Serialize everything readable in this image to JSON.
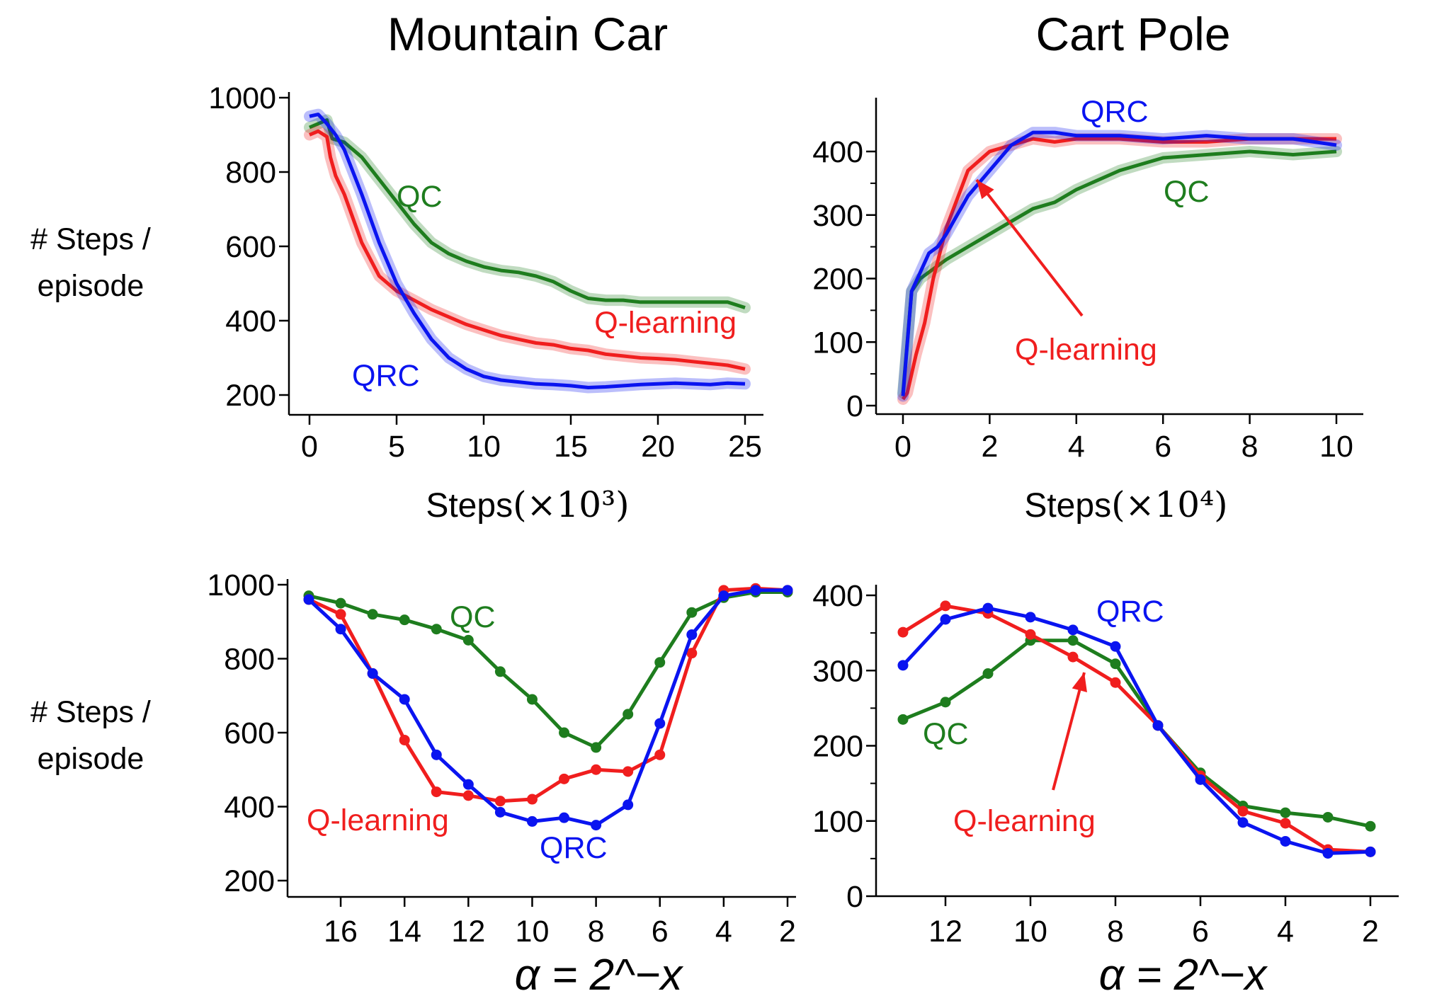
{
  "titles": [
    "Mountain Car",
    "Cart Pole"
  ],
  "row_ylabel": [
    "# Steps /",
    "episode"
  ],
  "colors": {
    "QRC": "#0a14f0",
    "Q-learning": "#f01e1e",
    "QC": "#1e7d1e"
  },
  "chart_data": [
    {
      "type": "line",
      "panel": "Mountain Car learning curve",
      "xlabel": "Steps",
      "xlabel_math": "(×10³)",
      "ylabel": "# Steps / episode",
      "xlim": [
        0,
        25
      ],
      "ylim": [
        200,
        1000
      ],
      "xticks": [
        "0",
        "5",
        "10",
        "15",
        "20",
        "25"
      ],
      "yticks": [
        "200",
        "400",
        "600",
        "800",
        "1000"
      ],
      "shaded_band": true,
      "series": [
        {
          "name": "QRC",
          "x": [
            0,
            0.5,
            1,
            1.5,
            2,
            3,
            4,
            5,
            6,
            7,
            8,
            9,
            10,
            11,
            12,
            13,
            14,
            15,
            16,
            17,
            18,
            19,
            20,
            21,
            22,
            23,
            24,
            25
          ],
          "y": [
            950,
            955,
            930,
            900,
            860,
            740,
            610,
            500,
            420,
            350,
            300,
            270,
            250,
            240,
            235,
            230,
            228,
            225,
            220,
            222,
            225,
            228,
            230,
            232,
            230,
            228,
            232,
            230
          ]
        },
        {
          "name": "Q-learning",
          "x": [
            0,
            0.5,
            1,
            1.2,
            1.5,
            2,
            3,
            4,
            5,
            6,
            7,
            8,
            9,
            10,
            11,
            12,
            13,
            14,
            15,
            16,
            17,
            18,
            19,
            20,
            21,
            22,
            23,
            24,
            25
          ],
          "y": [
            900,
            910,
            895,
            840,
            790,
            740,
            610,
            520,
            480,
            455,
            430,
            410,
            390,
            375,
            360,
            350,
            340,
            335,
            325,
            320,
            310,
            305,
            300,
            298,
            295,
            290,
            285,
            280,
            270
          ]
        },
        {
          "name": "QC",
          "x": [
            0,
            0.5,
            1,
            1.3,
            2,
            3,
            4,
            5,
            6,
            7,
            8,
            9,
            10,
            11,
            12,
            13,
            14,
            15,
            16,
            17,
            18,
            19,
            20,
            21,
            22,
            23,
            24,
            25
          ],
          "y": [
            920,
            930,
            940,
            890,
            880,
            840,
            780,
            720,
            660,
            610,
            580,
            560,
            545,
            535,
            530,
            520,
            505,
            480,
            460,
            455,
            455,
            450,
            450,
            450,
            450,
            450,
            450,
            435
          ]
        }
      ],
      "annotations": [
        "QC",
        "Q-learning",
        "QRC"
      ]
    },
    {
      "type": "line",
      "panel": "Cart Pole learning curve",
      "xlabel": "Steps",
      "xlabel_math": "(×10⁴)",
      "ylabel": "",
      "xlim": [
        0,
        10
      ],
      "ylim": [
        0,
        450
      ],
      "xticks": [
        "0",
        "2",
        "4",
        "6",
        "8",
        "10"
      ],
      "yticks": [
        "0",
        "100",
        "200",
        "300",
        "400"
      ],
      "shaded_band": true,
      "series": [
        {
          "name": "QRC",
          "x": [
            0,
            0.2,
            0.4,
            0.6,
            0.8,
            1,
            1.5,
            2,
            2.5,
            3,
            3.5,
            4,
            5,
            6,
            7,
            8,
            9,
            10
          ],
          "y": [
            15,
            180,
            210,
            240,
            250,
            270,
            330,
            370,
            410,
            430,
            430,
            425,
            425,
            420,
            425,
            420,
            420,
            410
          ]
        },
        {
          "name": "Q-learning",
          "x": [
            0,
            0.1,
            0.3,
            0.5,
            0.7,
            1,
            1.5,
            2,
            2.5,
            3,
            3.5,
            4,
            5,
            6,
            7,
            8,
            9,
            10
          ],
          "y": [
            10,
            20,
            80,
            130,
            200,
            280,
            370,
            400,
            410,
            420,
            415,
            420,
            420,
            415,
            415,
            420,
            420,
            420
          ]
        },
        {
          "name": "QC",
          "x": [
            0,
            0.2,
            0.4,
            0.6,
            0.8,
            1,
            1.5,
            2,
            2.5,
            3,
            3.5,
            4,
            5,
            6,
            7,
            8,
            9,
            10
          ],
          "y": [
            20,
            180,
            200,
            210,
            220,
            230,
            250,
            270,
            290,
            310,
            320,
            340,
            370,
            390,
            395,
            400,
            395,
            400
          ]
        }
      ],
      "annotations": [
        "QRC",
        "QC",
        "Q-learning"
      ]
    },
    {
      "type": "line",
      "panel": "Mountain Car step-size sensitivity",
      "xlabel": "α = 2^−x",
      "ylabel": "# Steps / episode",
      "xlim": [
        17.5,
        1.5
      ],
      "ylim": [
        200,
        1000
      ],
      "xticks": [
        "16",
        "14",
        "12",
        "10",
        "8",
        "6",
        "4",
        "2"
      ],
      "yticks": [
        "200",
        "400",
        "600",
        "800",
        "1000"
      ],
      "series": [
        {
          "name": "QRC",
          "x": [
            17,
            16,
            15,
            14,
            13,
            12,
            11,
            10,
            9,
            8,
            7,
            6,
            5,
            4,
            3,
            2
          ],
          "y": [
            960,
            880,
            760,
            690,
            540,
            460,
            385,
            360,
            370,
            350,
            405,
            625,
            865,
            970,
            985,
            985
          ]
        },
        {
          "name": "Q-learning",
          "x": [
            17,
            16,
            15,
            14,
            13,
            12,
            11,
            10,
            9,
            8,
            7,
            6,
            5,
            4,
            3,
            2
          ],
          "y": [
            960,
            920,
            760,
            580,
            440,
            430,
            415,
            420,
            475,
            500,
            495,
            540,
            815,
            985,
            990,
            985
          ]
        },
        {
          "name": "QC",
          "x": [
            17,
            16,
            15,
            14,
            13,
            12,
            11,
            10,
            9,
            8,
            7,
            6,
            5,
            4,
            3,
            2
          ],
          "y": [
            970,
            950,
            920,
            905,
            880,
            850,
            765,
            690,
            600,
            560,
            650,
            790,
            925,
            965,
            980,
            980
          ]
        }
      ],
      "annotations": [
        "QC",
        "Q-learning",
        "QRC"
      ]
    },
    {
      "type": "line",
      "panel": "Cart Pole step-size sensitivity",
      "xlabel": "α = 2^−x",
      "ylabel": "",
      "xlim": [
        13.5,
        1.5
      ],
      "ylim": [
        0,
        400
      ],
      "xticks": [
        "12",
        "10",
        "8",
        "6",
        "4",
        "2"
      ],
      "yticks": [
        "0",
        "100",
        "200",
        "300",
        "400"
      ],
      "series": [
        {
          "name": "QRC",
          "x": [
            13,
            12,
            11,
            10,
            9,
            8,
            7,
            6,
            5,
            4,
            3,
            2
          ],
          "y": [
            307,
            368,
            383,
            371,
            354,
            332,
            227,
            155,
            98,
            73,
            57,
            59
          ]
        },
        {
          "name": "Q-learning",
          "x": [
            13,
            12,
            11,
            10,
            9,
            8,
            7,
            6,
            5,
            4,
            3,
            2
          ],
          "y": [
            351,
            386,
            376,
            348,
            318,
            284,
            227,
            160,
            113,
            97,
            62,
            59
          ]
        },
        {
          "name": "QC",
          "x": [
            13,
            12,
            11,
            10,
            9,
            8,
            7,
            6,
            5,
            4,
            3,
            2
          ],
          "y": [
            235,
            258,
            296,
            340,
            340,
            309,
            227,
            164,
            120,
            111,
            105,
            93
          ]
        }
      ],
      "annotations": [
        "QRC",
        "QC",
        "Q-learning"
      ]
    }
  ]
}
